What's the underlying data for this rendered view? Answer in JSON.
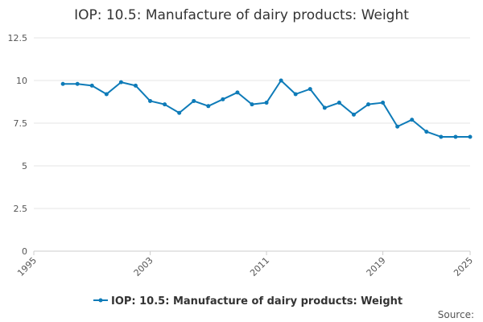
{
  "chart_data": {
    "type": "line",
    "title": "IOP: 10.5: Manufacture of dairy products: Weight",
    "xlabel": "",
    "ylabel": "",
    "xlim": [
      1995,
      2025
    ],
    "ylim": [
      0,
      12.5
    ],
    "x_ticks": [
      "1995",
      "2003",
      "2011",
      "2019",
      "2025"
    ],
    "y_ticks": [
      "0",
      "2.5",
      "5",
      "7.5",
      "10",
      "12.5"
    ],
    "grid": true,
    "legend_position": "bottom",
    "series": [
      {
        "name": "IOP: 10.5: Manufacture of dairy products: Weight",
        "color": "#0e7bb8",
        "x": [
          1997,
          1998,
          1999,
          2000,
          2001,
          2002,
          2003,
          2004,
          2005,
          2006,
          2007,
          2008,
          2009,
          2010,
          2011,
          2012,
          2013,
          2014,
          2015,
          2016,
          2017,
          2018,
          2019,
          2020,
          2021,
          2022,
          2023,
          2024,
          2025
        ],
        "values": [
          9.8,
          9.8,
          9.7,
          9.2,
          9.9,
          9.7,
          8.8,
          8.6,
          8.1,
          8.8,
          8.5,
          8.9,
          9.3,
          8.6,
          8.7,
          10.0,
          9.2,
          9.5,
          8.4,
          8.7,
          8.0,
          8.6,
          8.7,
          7.3,
          7.7,
          7.0,
          6.7,
          6.7,
          6.7
        ]
      }
    ],
    "source_label": "Source:"
  }
}
